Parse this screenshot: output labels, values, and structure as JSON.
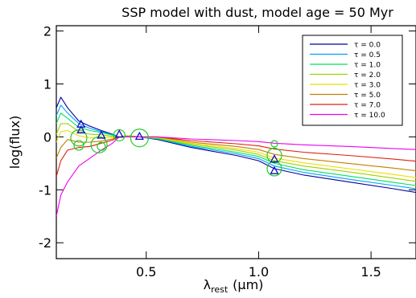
{
  "chart_data": {
    "type": "line",
    "title": "SSP model with dust, model age = 50 Myr",
    "xlabel_main": "λ",
    "xlabel_sub": "rest",
    "xlabel_unit": "(μm)",
    "ylabel": "log(flux)",
    "xlim": [
      0.1,
      1.7
    ],
    "ylim": [
      -2.3,
      2.1
    ],
    "x_ticks": [
      "0.5",
      "1.0",
      "1.5"
    ],
    "x_tick_values": [
      0.5,
      1.0,
      1.5
    ],
    "y_ticks": [
      "2",
      "1",
      "0",
      "-1",
      "-2"
    ],
    "y_tick_values": [
      2,
      1,
      0,
      -1,
      -2
    ],
    "legend_position": "top-right",
    "x": [
      0.1,
      0.12,
      0.15,
      0.2,
      0.25,
      0.3,
      0.35,
      0.38,
      0.42,
      0.47,
      0.55,
      0.7,
      0.9,
      1.0,
      1.07,
      1.2,
      1.4,
      1.6,
      1.7
    ],
    "series": [
      {
        "name": "τ = 0.0",
        "color": "#0000a0",
        "values": [
          0.55,
          0.75,
          0.55,
          0.3,
          0.2,
          0.12,
          0.05,
          0.0,
          0.02,
          0.0,
          -0.05,
          -0.2,
          -0.35,
          -0.45,
          -0.6,
          -0.72,
          -0.85,
          -0.98,
          -1.05
        ]
      },
      {
        "name": "τ = 0.5",
        "color": "#00a0ff",
        "values": [
          0.4,
          0.6,
          0.45,
          0.25,
          0.16,
          0.1,
          0.04,
          0.0,
          0.02,
          0.0,
          -0.04,
          -0.18,
          -0.32,
          -0.41,
          -0.55,
          -0.67,
          -0.8,
          -0.92,
          -0.98
        ]
      },
      {
        "name": "τ = 1.0",
        "color": "#00e060",
        "values": [
          0.25,
          0.45,
          0.35,
          0.18,
          0.12,
          0.08,
          0.03,
          0.0,
          0.02,
          0.0,
          -0.03,
          -0.16,
          -0.29,
          -0.37,
          -0.5,
          -0.62,
          -0.74,
          -0.86,
          -0.92
        ]
      },
      {
        "name": "τ = 2.0",
        "color": "#a0d000",
        "values": [
          0.05,
          0.25,
          0.25,
          0.1,
          0.05,
          0.04,
          0.01,
          0.0,
          0.02,
          0.0,
          -0.02,
          -0.14,
          -0.25,
          -0.33,
          -0.45,
          -0.55,
          -0.66,
          -0.78,
          -0.84
        ]
      },
      {
        "name": "τ = 3.0",
        "color": "#e8e000",
        "values": [
          -0.1,
          0.1,
          0.12,
          0.02,
          -0.02,
          -0.01,
          -0.01,
          0.0,
          0.01,
          0.0,
          -0.01,
          -0.12,
          -0.22,
          -0.29,
          -0.4,
          -0.49,
          -0.6,
          -0.71,
          -0.77
        ]
      },
      {
        "name": "τ = 5.0",
        "color": "#c08000",
        "values": [
          -0.4,
          -0.2,
          -0.05,
          -0.1,
          -0.1,
          -0.08,
          -0.04,
          0.0,
          0.01,
          0.0,
          0.0,
          -0.1,
          -0.18,
          -0.24,
          -0.33,
          -0.41,
          -0.5,
          -0.59,
          -0.64
        ]
      },
      {
        "name": "τ = 7.0",
        "color": "#e02010",
        "values": [
          -0.75,
          -0.45,
          -0.25,
          -0.2,
          -0.18,
          -0.12,
          -0.06,
          0.0,
          0.0,
          0.0,
          0.0,
          -0.07,
          -0.13,
          -0.17,
          -0.23,
          -0.29,
          -0.35,
          -0.42,
          -0.46
        ]
      },
      {
        "name": "τ = 10.0",
        "color": "#f000f0",
        "values": [
          -1.5,
          -1.1,
          -0.85,
          -0.55,
          -0.4,
          -0.25,
          -0.12,
          0.0,
          0.0,
          0.0,
          0.0,
          -0.04,
          -0.07,
          -0.09,
          -0.12,
          -0.15,
          -0.18,
          -0.22,
          -0.24
        ]
      }
    ],
    "triangle_points": [
      {
        "x": 0.21,
        "y": 0.13
      },
      {
        "x": 0.21,
        "y": 0.24
      },
      {
        "x": 0.3,
        "y": 0.03
      },
      {
        "x": 0.38,
        "y": 0.05
      },
      {
        "x": 0.47,
        "y": 0.01
      },
      {
        "x": 1.07,
        "y": -0.42
      },
      {
        "x": 1.07,
        "y": -0.64
      }
    ],
    "circle_points": [
      {
        "x": 0.2,
        "y": -0.02,
        "r": 10
      },
      {
        "x": 0.2,
        "y": -0.16,
        "r": 6
      },
      {
        "x": 0.29,
        "y": -0.15,
        "r": 10
      },
      {
        "x": 0.3,
        "y": -0.18,
        "r": 5
      },
      {
        "x": 0.38,
        "y": 0.03,
        "r": 7
      },
      {
        "x": 0.47,
        "y": -0.02,
        "r": 11
      },
      {
        "x": 1.07,
        "y": -0.35,
        "r": 9
      },
      {
        "x": 1.07,
        "y": -0.6,
        "r": 9
      },
      {
        "x": 1.07,
        "y": -0.13,
        "r": 4
      }
    ]
  }
}
